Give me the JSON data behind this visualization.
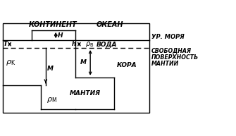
{
  "bg_color": "#ffffff",
  "line_color": "#000000",
  "continent_label": "КОНТИНЕНТ",
  "ocean_label": "ОКЕАН",
  "sea_level_label": "УР. МОРЯ",
  "free_surface_label": "СВОБОДНАЯ\nПОВЕРХНОСТЬ\nМАНТИИ",
  "water_label": "ВОДА",
  "crust_label": "КОРА",
  "mantle_label": "МАНТИЯ",
  "T_label": "T",
  "H_label": "H",
  "h_label": "h",
  "M_left_label": "M",
  "M_right_label": "M",
  "figsize": [
    3.35,
    1.93
  ],
  "dpi": 100
}
